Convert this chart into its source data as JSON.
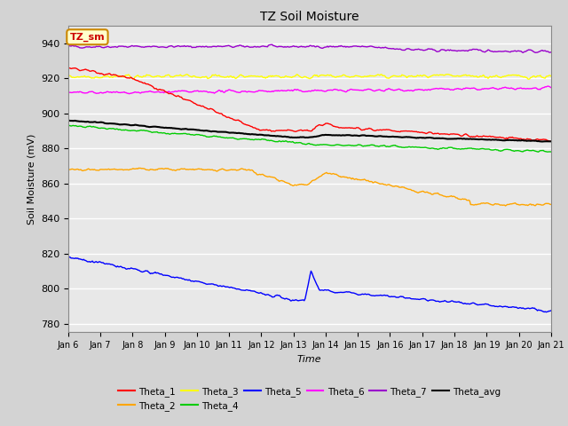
{
  "title": "TZ Soil Moisture",
  "xlabel": "Time",
  "ylabel": "Soil Moisture (mV)",
  "annotation_text": "TZ_sm",
  "x_start": 6,
  "x_end": 21,
  "x_ticks": [
    6,
    7,
    8,
    9,
    10,
    11,
    12,
    13,
    14,
    15,
    16,
    17,
    18,
    19,
    20,
    21
  ],
  "x_tick_labels": [
    "Jan 6",
    "Jan 7",
    "Jan 8",
    "Jan 9",
    "Jan 10",
    "Jan 11",
    "Jan 12",
    "Jan 13",
    "Jan 14",
    "Jan 15",
    "Jan 16",
    "Jan 17",
    "Jan 18",
    "Jan 19",
    "Jan 20",
    "Jan 21"
  ],
  "ylim": [
    775,
    950
  ],
  "y_ticks": [
    780,
    800,
    820,
    840,
    860,
    880,
    900,
    920,
    940
  ],
  "colors": {
    "Theta_1": "#ff0000",
    "Theta_2": "#ffa500",
    "Theta_3": "#ffff00",
    "Theta_4": "#00cc00",
    "Theta_5": "#0000ff",
    "Theta_6": "#ff00ff",
    "Theta_7": "#9900cc",
    "Theta_avg": "#000000"
  },
  "figure_bg": "#d3d3d3",
  "plot_bg": "#e8e8e8",
  "grid_color": "#ffffff",
  "annotation_facecolor": "#ffffcc",
  "annotation_edgecolor": "#cc8800",
  "annotation_textcolor": "#cc0000"
}
